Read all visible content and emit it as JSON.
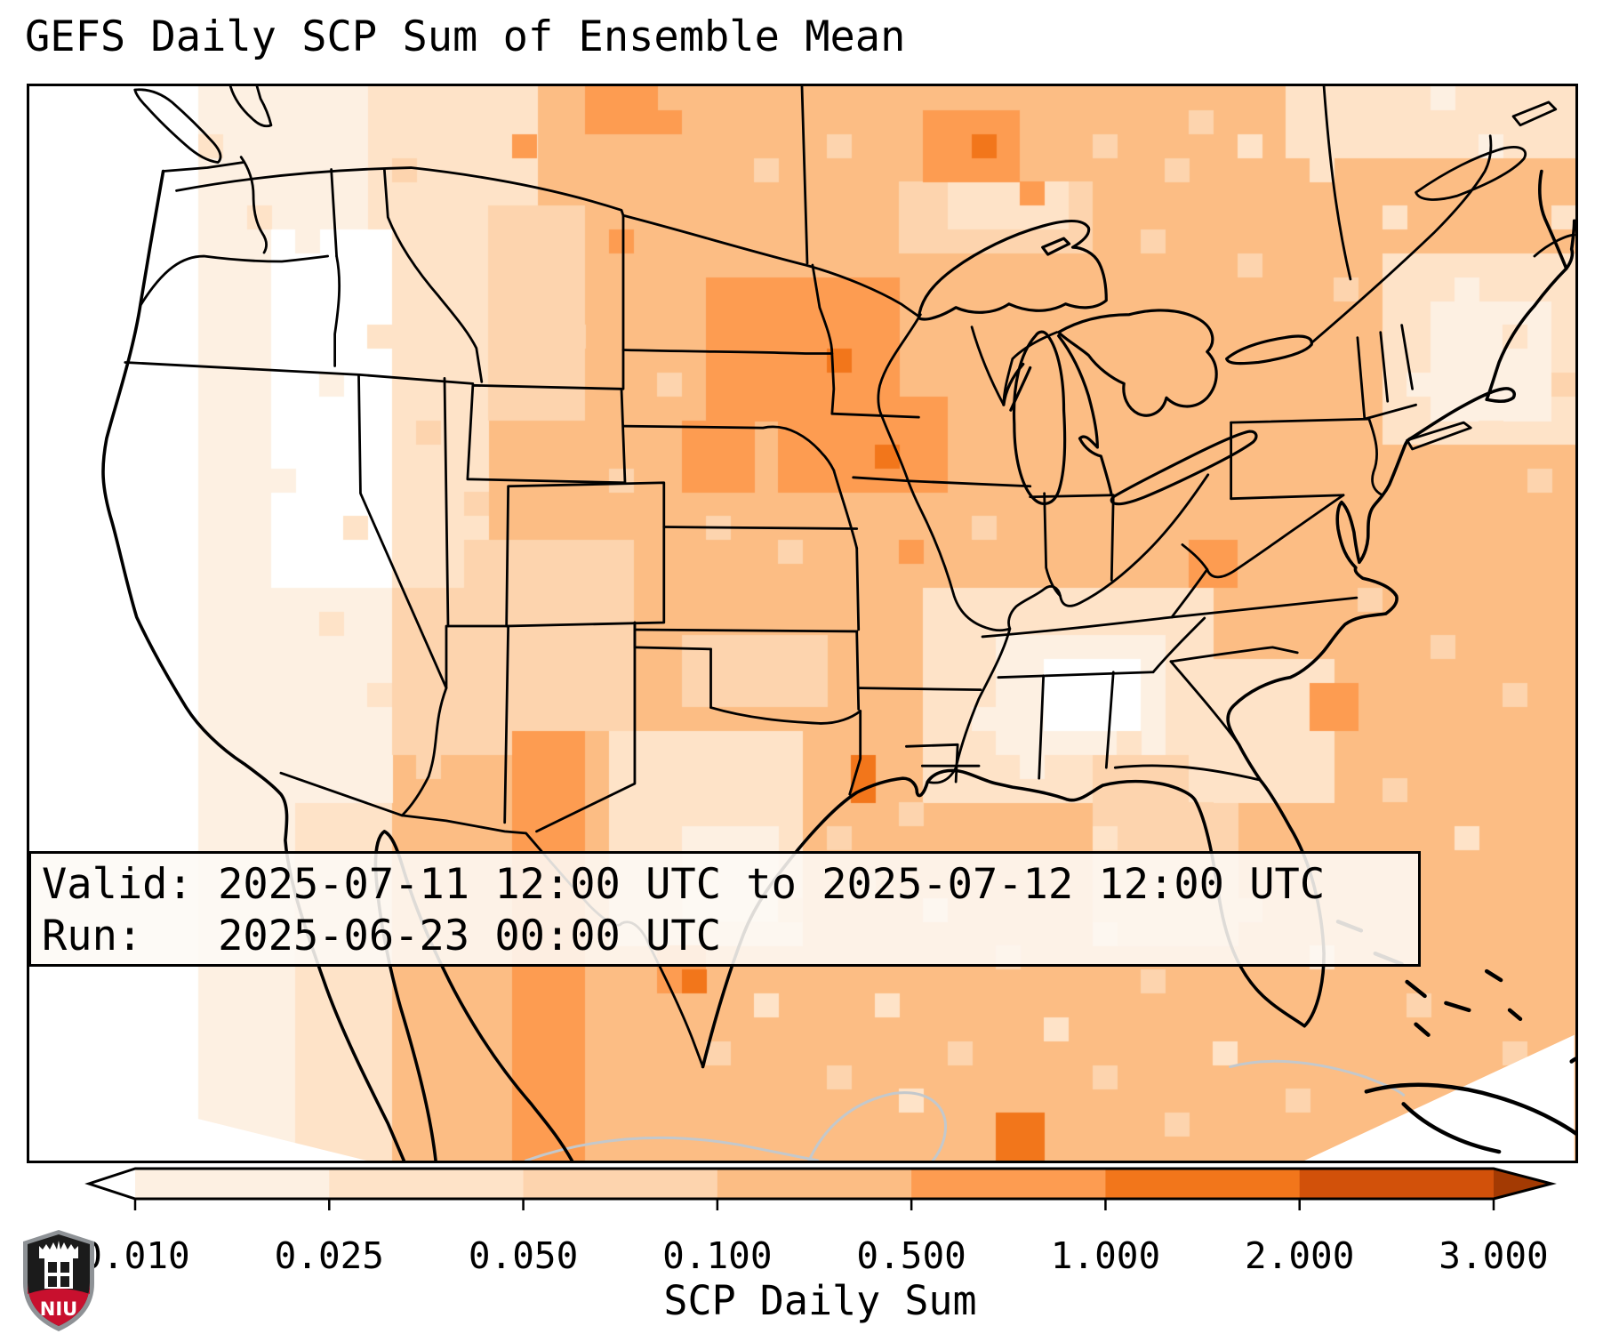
{
  "title": "GEFS Daily SCP Sum of Ensemble Mean",
  "info_box": {
    "line1": "Valid: 2025-07-11 12:00 UTC to 2025-07-12 12:00 UTC",
    "line2": "Run:   2025-06-23 00:00 UTC"
  },
  "colorbar": {
    "label": "SCP Daily Sum",
    "tick_labels": [
      "0.010",
      "0.025",
      "0.050",
      "0.100",
      "0.500",
      "1.000",
      "2.000",
      "3.000"
    ],
    "under_color": "#ffffff",
    "over_color": "#a33a03",
    "segment_colors": [
      "#fdf0e2",
      "#fee3c8",
      "#fdd4ae",
      "#fcbd84",
      "#fd9c51",
      "#f2761b",
      "#d2510a"
    ],
    "outline_color": "#000000"
  },
  "logo": {
    "text": "NIU",
    "shield_color": "#1b1b1b",
    "band_color": "#c8102e",
    "border_color": "#8e9296",
    "castle_color": "#ffffff"
  },
  "map_colors": {
    "border_color": "#000000",
    "minor_coast_color": "#c3c8cc",
    "ocean_nodata_color": "#ffffff"
  },
  "chart_data": {
    "type": "heatmap",
    "title": "GEFS Daily SCP Sum of Ensemble Mean",
    "colorbar_label": "SCP Daily Sum",
    "boundaries": [
      0.01,
      0.025,
      0.05,
      0.1,
      0.5,
      1.0,
      2.0,
      3.0
    ],
    "palette": [
      "#ffffff",
      "#fdf0e2",
      "#fee3c8",
      "#fdd4ae",
      "#fcbd84",
      "#fd9c51",
      "#f2761b",
      "#d2510a",
      "#a33a03"
    ],
    "palette_meaning": [
      "<0.010",
      "0.010-0.025",
      "0.025-0.050",
      "0.050-0.100",
      "0.100-0.500",
      "0.500-1.000",
      "1.000-2.000",
      "2.000-3.000",
      ">3.000"
    ],
    "grid": {
      "cols": 64,
      "rows": 45
    },
    "patches": [
      [
        0,
        0,
        64,
        45,
        4
      ],
      [
        0,
        0,
        7,
        45,
        0
      ],
      [
        7,
        0,
        4,
        45,
        1
      ],
      [
        11,
        0,
        4,
        45,
        2
      ],
      [
        9,
        0,
        5,
        8,
        1
      ],
      [
        15,
        0,
        6,
        9,
        2
      ],
      [
        10,
        6,
        5,
        15,
        0
      ],
      [
        15,
        9,
        4,
        12,
        2
      ],
      [
        19,
        5,
        4,
        9,
        3
      ],
      [
        9,
        21,
        6,
        9,
        1
      ],
      [
        15,
        21,
        7,
        7,
        3
      ],
      [
        18,
        19,
        7,
        8,
        3
      ],
      [
        27,
        23,
        6,
        3,
        3
      ],
      [
        24,
        27,
        8,
        9,
        2
      ],
      [
        27,
        31,
        4,
        4,
        1
      ],
      [
        20,
        27,
        3,
        18,
        5
      ],
      [
        37,
        21,
        12,
        9,
        2
      ],
      [
        40,
        23,
        7,
        5,
        1
      ],
      [
        42,
        24,
        4,
        3,
        0
      ],
      [
        44,
        28,
        6,
        8,
        3
      ],
      [
        48,
        24,
        6,
        6,
        2
      ],
      [
        56,
        7,
        8,
        8,
        2
      ],
      [
        58,
        9,
        5,
        5,
        1
      ],
      [
        52,
        0,
        12,
        3,
        2
      ],
      [
        36,
        4,
        8,
        3,
        3
      ],
      [
        38,
        4,
        5,
        2,
        2
      ],
      [
        28,
        8,
        8,
        6,
        5
      ],
      [
        31,
        13,
        7,
        4,
        5
      ],
      [
        33,
        11,
        1,
        1,
        6
      ],
      [
        35,
        15,
        1,
        1,
        6
      ],
      [
        37,
        1,
        4,
        3,
        5
      ],
      [
        39,
        2,
        1,
        1,
        6
      ],
      [
        27,
        14,
        3,
        3,
        5
      ],
      [
        23,
        0,
        3,
        2,
        5
      ],
      [
        48,
        19,
        2,
        2,
        5
      ],
      [
        34,
        28,
        1,
        2,
        6
      ],
      [
        26,
        36,
        2,
        2,
        5
      ],
      [
        27,
        37,
        1,
        1,
        6
      ],
      [
        40,
        43,
        2,
        2,
        6
      ],
      [
        53,
        25,
        2,
        2,
        5
      ]
    ],
    "cells": [
      [
        7,
        2,
        2
      ],
      [
        9,
        5,
        2
      ],
      [
        11,
        6,
        1
      ],
      [
        8,
        10,
        1
      ],
      [
        12,
        12,
        1
      ],
      [
        10,
        16,
        1
      ],
      [
        13,
        18,
        2
      ],
      [
        7,
        20,
        1
      ],
      [
        15,
        3,
        3
      ],
      [
        17,
        5,
        2
      ],
      [
        14,
        10,
        2
      ],
      [
        16,
        14,
        3
      ],
      [
        18,
        17,
        3
      ],
      [
        12,
        22,
        2
      ],
      [
        14,
        25,
        2
      ],
      [
        16,
        28,
        3
      ],
      [
        18,
        30,
        4
      ],
      [
        20,
        2,
        5
      ],
      [
        26,
        1,
        5
      ],
      [
        30,
        3,
        3
      ],
      [
        33,
        2,
        3
      ],
      [
        41,
        4,
        5
      ],
      [
        44,
        2,
        3
      ],
      [
        47,
        3,
        3
      ],
      [
        36,
        6,
        3
      ],
      [
        24,
        6,
        5
      ],
      [
        22,
        10,
        3
      ],
      [
        26,
        12,
        3
      ],
      [
        24,
        16,
        3
      ],
      [
        28,
        18,
        3
      ],
      [
        31,
        19,
        3
      ],
      [
        36,
        19,
        5
      ],
      [
        39,
        18,
        3
      ],
      [
        25,
        30,
        2
      ],
      [
        30,
        30,
        2
      ],
      [
        33,
        31,
        3
      ],
      [
        36,
        30,
        3
      ],
      [
        39,
        26,
        1
      ],
      [
        42,
        28,
        2
      ],
      [
        44,
        23,
        1
      ],
      [
        41,
        28,
        1
      ],
      [
        45,
        27,
        2
      ],
      [
        44,
        31,
        2
      ],
      [
        46,
        33,
        3
      ],
      [
        48,
        30,
        3
      ],
      [
        44,
        35,
        2
      ],
      [
        46,
        37,
        3
      ],
      [
        59,
        8,
        1
      ],
      [
        61,
        10,
        2
      ],
      [
        57,
        12,
        1
      ],
      [
        60,
        14,
        2
      ],
      [
        62,
        16,
        3
      ],
      [
        55,
        21,
        3
      ],
      [
        58,
        23,
        3
      ],
      [
        61,
        25,
        3
      ],
      [
        56,
        29,
        3
      ],
      [
        59,
        31,
        2
      ],
      [
        50,
        34,
        3
      ],
      [
        53,
        36,
        2
      ],
      [
        57,
        38,
        3
      ],
      [
        61,
        40,
        3
      ],
      [
        49,
        40,
        2
      ],
      [
        52,
        42,
        3
      ],
      [
        31,
        34,
        3
      ],
      [
        34,
        33,
        3
      ],
      [
        37,
        34,
        2
      ],
      [
        40,
        36,
        3
      ],
      [
        35,
        38,
        2
      ],
      [
        38,
        40,
        3
      ],
      [
        42,
        39,
        2
      ],
      [
        30,
        38,
        2
      ],
      [
        28,
        40,
        3
      ],
      [
        33,
        41,
        3
      ],
      [
        36,
        42,
        2
      ],
      [
        44,
        41,
        3
      ],
      [
        47,
        43,
        3
      ],
      [
        48,
        1,
        3
      ],
      [
        50,
        2,
        2
      ],
      [
        53,
        3,
        2
      ],
      [
        56,
        5,
        2
      ],
      [
        60,
        2,
        1
      ],
      [
        63,
        5,
        2
      ],
      [
        46,
        6,
        3
      ],
      [
        50,
        7,
        3
      ],
      [
        54,
        8,
        3
      ],
      [
        63,
        12,
        3
      ],
      [
        58,
        0,
        1
      ],
      [
        62,
        8,
        2
      ]
    ]
  }
}
